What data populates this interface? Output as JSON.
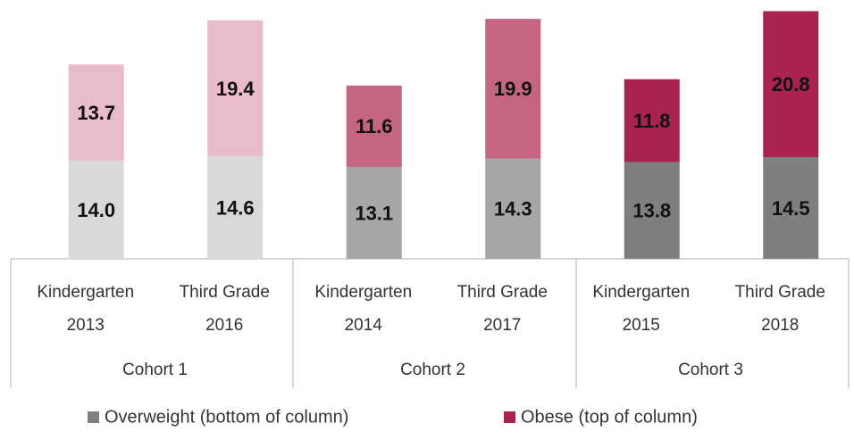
{
  "chart_data": {
    "type": "stacked_bar",
    "categories": [
      [
        "Kindergarten",
        "2013"
      ],
      [
        "Third Grade",
        "2016"
      ],
      [
        "Kindergarten",
        "2014"
      ],
      [
        "Third Grade",
        "2017"
      ],
      [
        "Kindergarten",
        "2015"
      ],
      [
        "Third Grade",
        "2018"
      ]
    ],
    "groups": [
      "Cohort 1",
      "Cohort 2",
      "Cohort 3"
    ],
    "series": [
      {
        "name": "Overweight (bottom of column)",
        "color": "#7f7f7f",
        "colors": [
          "#d9d9d9",
          "#d9d9d9",
          "#a6a6a6",
          "#a6a6a6",
          "#7f7f7f",
          "#7f7f7f"
        ],
        "values": [
          14.0,
          14.6,
          13.1,
          14.3,
          13.8,
          14.5
        ],
        "value_labels": [
          "14.0",
          "14.6",
          "13.1",
          "14.3",
          "13.8",
          "14.5"
        ]
      },
      {
        "name": "Obese (top of column)",
        "color": "#a8234f",
        "colors": [
          "#e8bccb",
          "#e8bccb",
          "#c4667f",
          "#c4667f",
          "#a8234f",
          "#a8234f"
        ],
        "values": [
          13.7,
          19.4,
          11.6,
          19.9,
          11.8,
          20.8
        ],
        "value_labels": [
          "13.7",
          "19.4",
          "11.6",
          "19.9",
          "11.8",
          "20.8"
        ]
      }
    ],
    "ylim": [
      0,
      36
    ],
    "legend": "bottom"
  }
}
